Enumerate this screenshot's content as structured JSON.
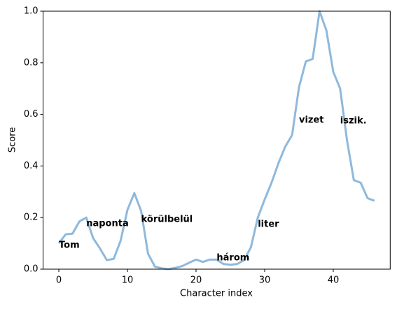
{
  "chart_data": {
    "type": "line",
    "xlabel": "Character index",
    "ylabel": "Score",
    "x": [
      0,
      1,
      2,
      3,
      4,
      5,
      6,
      7,
      8,
      9,
      10,
      11,
      12,
      13,
      14,
      15,
      16,
      17,
      18,
      19,
      20,
      21,
      22,
      23,
      24,
      25,
      26,
      27,
      28,
      29,
      30,
      31,
      32,
      33,
      34,
      35,
      36,
      37,
      38,
      39,
      40,
      41,
      42,
      43,
      44,
      45,
      46
    ],
    "values": [
      0.1,
      0.135,
      0.138,
      0.185,
      0.2,
      0.12,
      0.08,
      0.035,
      0.04,
      0.11,
      0.23,
      0.295,
      0.225,
      0.06,
      0.01,
      0.003,
      0.0,
      0.005,
      0.012,
      0.025,
      0.037,
      0.028,
      0.037,
      0.037,
      0.02,
      0.017,
      0.02,
      0.035,
      0.085,
      0.2,
      0.27,
      0.335,
      0.41,
      0.475,
      0.52,
      0.705,
      0.805,
      0.815,
      1.0,
      0.925,
      0.765,
      0.7,
      0.5,
      0.345,
      0.335,
      0.275,
      0.265
    ],
    "color": "#8fb9dc",
    "xlim": [
      -2.3,
      48.3
    ],
    "xticks": [
      0,
      10,
      20,
      30,
      40
    ],
    "ylim": [
      0,
      1
    ],
    "yticks": [
      {
        "value": 0,
        "label": "0.0"
      },
      {
        "value": 0.2,
        "label": "0.2"
      },
      {
        "value": 0.4,
        "label": "0.4"
      },
      {
        "value": 0.6,
        "label": "0.6"
      },
      {
        "value": 0.8,
        "label": "0.8"
      },
      {
        "value": 1,
        "label": "1.0"
      }
    ],
    "annotations": [
      {
        "text": "Tom",
        "x": 0,
        "y": 0.092
      },
      {
        "text": "naponta",
        "x": 4,
        "y": 0.176
      },
      {
        "text": "körülbelül",
        "x": 12,
        "y": 0.192
      },
      {
        "text": "három",
        "x": 23,
        "y": 0.043
      },
      {
        "text": "liter",
        "x": 29,
        "y": 0.173
      },
      {
        "text": "vizet",
        "x": 35,
        "y": 0.577
      },
      {
        "text": "iszik.",
        "x": 41,
        "y": 0.575
      }
    ]
  }
}
